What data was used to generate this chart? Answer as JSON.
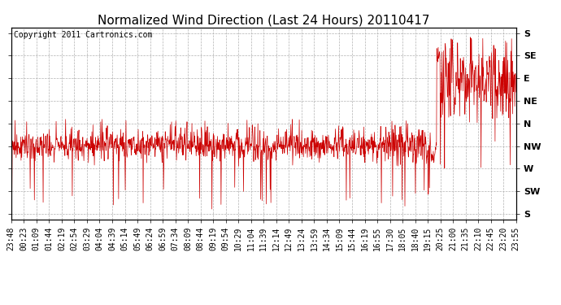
{
  "title": "Normalized Wind Direction (Last 24 Hours) 20110417",
  "copyright": "Copyright 2011 Cartronics.com",
  "background_color": "#ffffff",
  "line_color": "#cc0000",
  "grid_color": "#aaaaaa",
  "ytick_labels": [
    "S",
    "SW",
    "W",
    "NW",
    "N",
    "NE",
    "E",
    "SE",
    "S"
  ],
  "ytick_values": [
    0,
    1,
    2,
    3,
    4,
    5,
    6,
    7,
    8
  ],
  "xtick_labels": [
    "23:48",
    "00:23",
    "01:09",
    "01:44",
    "02:19",
    "02:54",
    "03:29",
    "04:04",
    "04:39",
    "05:14",
    "05:49",
    "06:24",
    "06:59",
    "07:34",
    "08:09",
    "08:44",
    "09:19",
    "09:54",
    "10:29",
    "11:04",
    "11:39",
    "12:14",
    "12:49",
    "13:24",
    "13:59",
    "14:34",
    "15:09",
    "15:44",
    "16:19",
    "16:55",
    "17:30",
    "18:05",
    "18:40",
    "19:15",
    "20:25",
    "21:00",
    "21:35",
    "22:10",
    "22:45",
    "23:20",
    "23:55"
  ],
  "ylim": [
    -0.25,
    8.25
  ],
  "title_fontsize": 11,
  "axis_fontsize": 7,
  "copyright_fontsize": 7,
  "seed": 99
}
